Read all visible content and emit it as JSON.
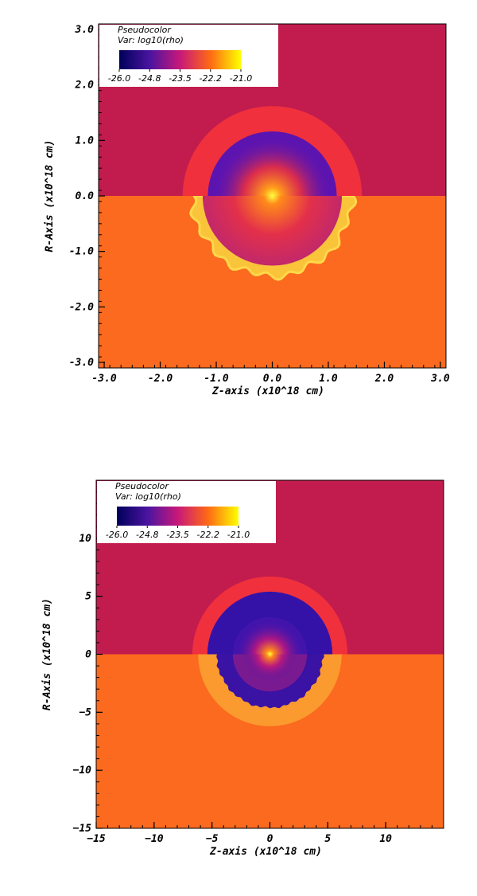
{
  "chart_data": [
    {
      "type": "heatmap",
      "legend": {
        "title": "Pseudocolor",
        "var_label": "Var: log10(rho)",
        "ticks": [
          "-26.0",
          "-24.8",
          "-23.5",
          "-22.2",
          "-21.0"
        ],
        "range": [
          -26.0,
          -21.0
        ],
        "placement": "top-left"
      },
      "xlabel": "Z-axis  (x10^18 cm)",
      "ylabel": "R-Axis  (x10^18 cm)",
      "xlim": [
        -3.1,
        3.1
      ],
      "ylim": [
        -3.1,
        3.1
      ],
      "x_ticks": [
        {
          "value": -3.0,
          "label": "-3.0"
        },
        {
          "value": -2.0,
          "label": "-2.0"
        },
        {
          "value": -1.0,
          "label": "-1.0"
        },
        {
          "value": 0.0,
          "label": "0.0"
        },
        {
          "value": 1.0,
          "label": "1.0"
        },
        {
          "value": 2.0,
          "label": "2.0"
        },
        {
          "value": 3.0,
          "label": "3.0"
        }
      ],
      "y_ticks": [
        {
          "value": 3.0,
          "label": "3.0"
        },
        {
          "value": 2.0,
          "label": "2.0"
        },
        {
          "value": 1.0,
          "label": "1.0"
        },
        {
          "value": 0.0,
          "label": "0.0"
        },
        {
          "value": -1.0,
          "label": "-1.0"
        },
        {
          "value": -2.0,
          "label": "-2.0"
        },
        {
          "value": -3.0,
          "label": "-3.0"
        }
      ],
      "upper_half": {
        "background": "#c21c4e",
        "shell_radius": 1.6,
        "shell_color": "#f0303c",
        "bubble_radius": 1.15,
        "bubble_center_y": 0.0,
        "bubble_color": "#5c14b0"
      },
      "lower_half": {
        "background": "#fb6a1e",
        "front_radius": 1.42,
        "front_color": "#f9c33a",
        "inner_radius": 1.35,
        "inner_color": "#e33e5a"
      }
    },
    {
      "type": "heatmap",
      "legend": {
        "title": "Pseudocolor",
        "var_label": "Var: log10(rho)",
        "ticks": [
          "-26.0",
          "-24.8",
          "-23.5",
          "-22.2",
          "-21.0"
        ],
        "range": [
          -26.0,
          -21.0
        ],
        "placement": "top-left"
      },
      "xlabel": "Z-axis  (x10^18 cm)",
      "ylabel": "R-Axis  (x10^18 cm)",
      "xlim": [
        -15,
        15
      ],
      "ylim": [
        -15,
        15
      ],
      "x_ticks": [
        {
          "value": -15,
          "label": "−15"
        },
        {
          "value": -10,
          "label": "−10"
        },
        {
          "value": -5,
          "label": "−5"
        },
        {
          "value": 0,
          "label": "0"
        },
        {
          "value": 5,
          "label": "5"
        },
        {
          "value": 10,
          "label": "10"
        }
      ],
      "y_ticks": [
        {
          "value": 10,
          "label": "10"
        },
        {
          "value": 5,
          "label": "5"
        },
        {
          "value": 0,
          "label": "0"
        },
        {
          "value": -5,
          "label": "−5"
        },
        {
          "value": -10,
          "label": "−10"
        },
        {
          "value": -15,
          "label": "−15"
        }
      ],
      "upper_half": {
        "background": "#c21c4e",
        "shell_radius": 6.7,
        "shell_color": "#f0303c",
        "bubble_radius": 5.4,
        "bubble_center_y": 0.0,
        "bubble_color": "#3412a8",
        "inner_radius": 3.2,
        "inner_center_y": 0.0,
        "inner_color": "#4214ac"
      },
      "lower_half": {
        "background": "#fb6a1e",
        "front_radius": 6.2,
        "front_color": "#fb9a2e",
        "inner_radius": 4.6,
        "inner_color": "#3a12a4",
        "core_radius": 3.2,
        "core_color": "#7a1a90"
      }
    }
  ]
}
